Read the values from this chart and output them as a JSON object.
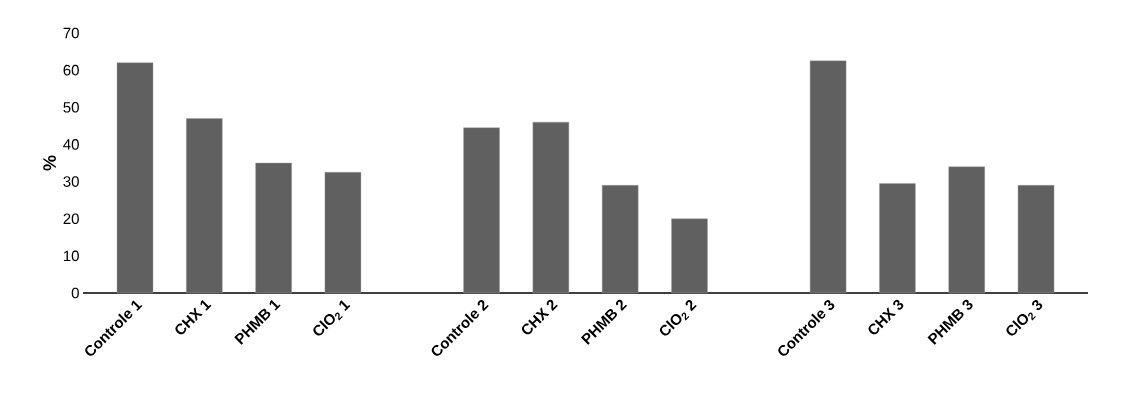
{
  "chart_data": {
    "type": "bar",
    "ylabel": "%",
    "categories": [
      "Controle 1",
      "CHX 1",
      "PHMB 1",
      "ClO$_{2}$ 1",
      null,
      "Controle 2",
      "CHX 2",
      "PHMB 2",
      "ClO$_{2}$ 2",
      null,
      "Controle 3",
      "CHX 3",
      "PHMB 3",
      "ClO$_{2}$ 3"
    ],
    "values": [
      62,
      47,
      35,
      32.5,
      null,
      44.5,
      46,
      29,
      20,
      null,
      62.5,
      29.5,
      34,
      29
    ],
    "color": "#606060",
    "ylim": [
      0,
      70
    ],
    "yticks": [
      0,
      10,
      20,
      30,
      40,
      50,
      60,
      70
    ]
  }
}
